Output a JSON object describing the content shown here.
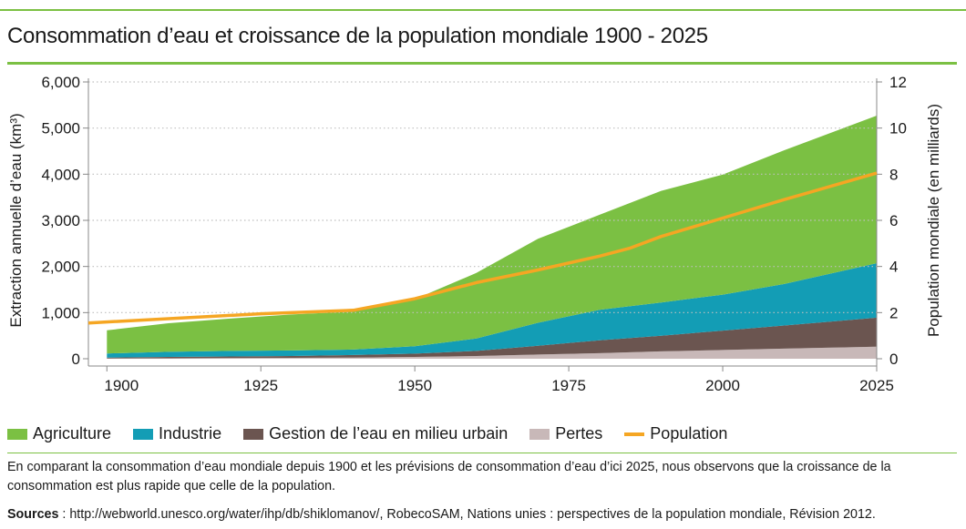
{
  "title": "Consommation d’eau et croissance de la population mondiale 1900 - 2025",
  "chart_data": {
    "type": "area",
    "x": [
      1900,
      1910,
      1920,
      1930,
      1940,
      1950,
      1960,
      1970,
      1980,
      1990,
      2000,
      2010,
      2025
    ],
    "xticks": [
      "1900",
      "1925",
      "1950",
      "1975",
      "2000",
      "2025"
    ],
    "xlim": [
      1897,
      2025
    ],
    "ylabel": "Extraction annuelle d’eau (km³)",
    "yticks": [
      "0",
      "1,000",
      "2,000",
      "3,000",
      "4,000",
      "5,000",
      "6,000"
    ],
    "ylim": [
      0,
      6000
    ],
    "y2label": "Population mondiale (en milliards)",
    "y2ticks": [
      "0",
      "2",
      "4",
      "6",
      "8",
      "10",
      "12"
    ],
    "y2lim": [
      0,
      12
    ],
    "grid": "dotted horizontal",
    "legend_position": "bottom",
    "series": [
      {
        "name": "Pertes",
        "color": "#c8b8b8",
        "values": [
          5,
          10,
          15,
          20,
          25,
          40,
          60,
          90,
          120,
          160,
          190,
          220,
          260
        ]
      },
      {
        "name": "Gestion de l’eau en milieu urbain",
        "color": "#6b5550",
        "values": [
          20,
          30,
          35,
          40,
          55,
          70,
          110,
          190,
          280,
          340,
          420,
          500,
          630
        ]
      },
      {
        "name": "Industrie",
        "color": "#139db5",
        "values": [
          90,
          110,
          120,
          120,
          120,
          160,
          270,
          500,
          660,
          720,
          780,
          900,
          1180
        ]
      },
      {
        "name": "Agriculture",
        "color": "#7bc043",
        "values": [
          500,
          620,
          700,
          780,
          820,
          1020,
          1420,
          1820,
          2060,
          2420,
          2600,
          2900,
          3200
        ]
      }
    ],
    "line_series": {
      "name": "Population",
      "color": "#f5a623",
      "axis": "right",
      "x": [
        1897,
        1925,
        1940,
        1950,
        1960,
        1970,
        1980,
        1985,
        1990,
        2000,
        2010,
        2025
      ],
      "values": [
        1.55,
        1.95,
        2.1,
        2.6,
        3.3,
        3.85,
        4.45,
        4.8,
        5.3,
        6.1,
        6.9,
        8.05
      ]
    }
  },
  "legend": [
    {
      "label": "Agriculture",
      "color": "#7bc043",
      "kind": "area"
    },
    {
      "label": "Industrie",
      "color": "#139db5",
      "kind": "area"
    },
    {
      "label": "Gestion de l’eau en milieu urbain",
      "color": "#6b5550",
      "kind": "area"
    },
    {
      "label": "Pertes",
      "color": "#c8b8b8",
      "kind": "area"
    },
    {
      "label": "Population",
      "color": "#f5a623",
      "kind": "line"
    }
  ],
  "note": "En comparant la consommation d’eau mondiale depuis 1900 et les prévisions de consommation d’eau d’ici 2025, nous observons que la croissance de la consommation est plus rapide que celle de la population.",
  "sources_label": "Sources",
  "sources_text": " : http://webworld.unesco.org/water/ihp/db/shiklomanov/, RobecoSAM, Nations unies : perspectives de la population mondiale, Révision 2012.",
  "colors": {
    "accent": "#7bc043"
  }
}
